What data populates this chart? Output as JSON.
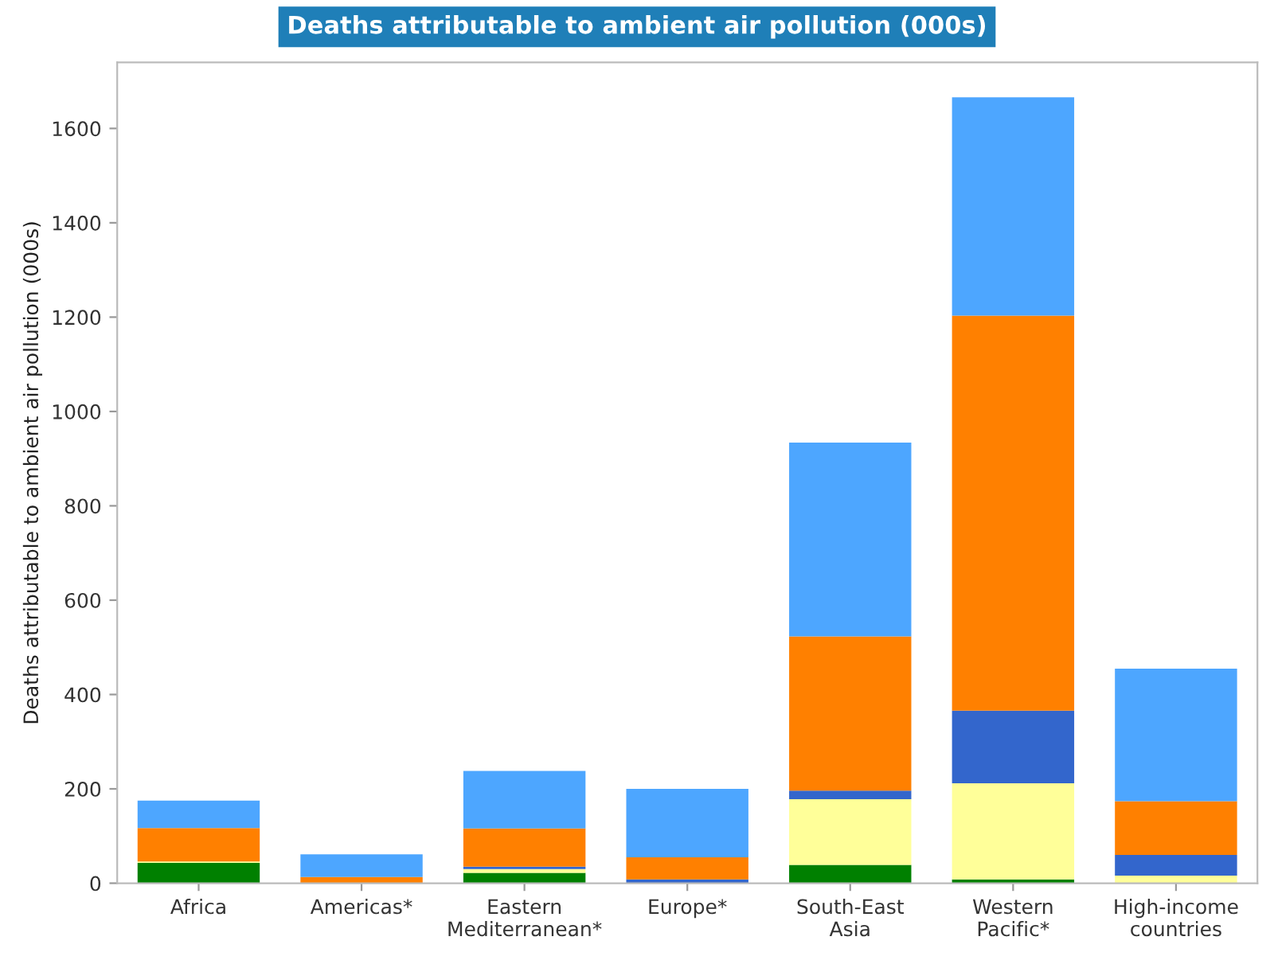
{
  "chart_data": {
    "type": "bar",
    "title": "Deaths attributable to ambient air pollution (000s)",
    "ylabel": "Deaths attributable to ambient air pollution (000s)",
    "categories": [
      "Africa",
      "Americas*",
      "Eastern\nMediterranean*",
      "Europe*",
      "South-East\nAsia",
      "Western\nPacific*",
      "High-income\ncountries"
    ],
    "stacked": true,
    "series": [
      {
        "color": "#008000",
        "values": [
          43,
          0,
          22,
          0,
          39,
          8,
          0
        ]
      },
      {
        "color": "#ffff99",
        "values": [
          3,
          0,
          8,
          0,
          139,
          204,
          16
        ]
      },
      {
        "color": "#3366cc",
        "values": [
          0,
          0,
          5,
          8,
          18,
          154,
          44
        ]
      },
      {
        "color": "#ff8000",
        "values": [
          71,
          13,
          81,
          47,
          327,
          837,
          114
        ]
      },
      {
        "color": "#4da6ff",
        "values": [
          58,
          48,
          122,
          145,
          411,
          463,
          281
        ]
      }
    ],
    "ylim": [
      0,
      1740
    ],
    "yticks": [
      0,
      200,
      400,
      600,
      800,
      1000,
      1200,
      1400,
      1600
    ],
    "grid": false,
    "legend": false
  }
}
